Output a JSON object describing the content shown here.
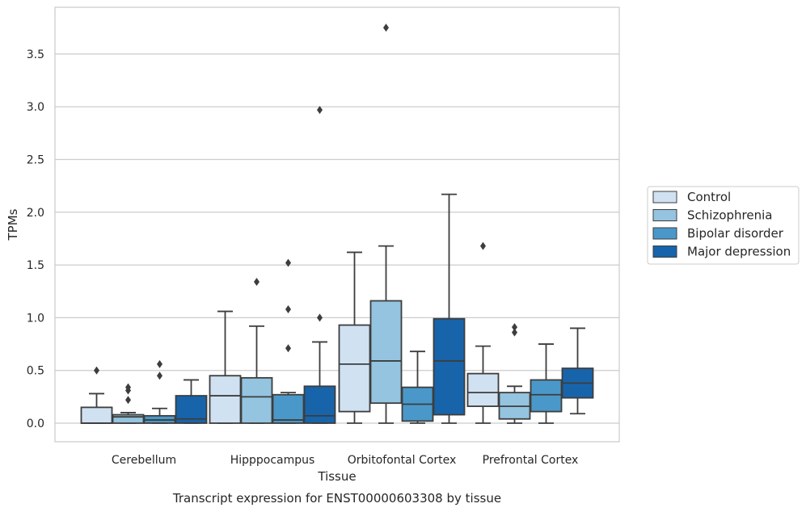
{
  "chart_data": {
    "type": "box",
    "title": "",
    "caption": "Transcript expression for ENST00000603308 by tissue",
    "xlabel": "Tissue",
    "ylabel": "TPMs",
    "ylim": [
      -0.18,
      3.9
    ],
    "yticks": [
      "0.0",
      "0.5",
      "1.0",
      "1.5",
      "2.0",
      "2.5",
      "3.0",
      "3.5"
    ],
    "grid": "horizontal",
    "legend_position": "right",
    "categories": [
      "Cerebellum",
      "Hipppocampus",
      "Orbitofontal Cortex",
      "Prefrontal Cortex"
    ],
    "series": [
      {
        "name": "Control",
        "color": "#d0e1f2",
        "boxes": [
          {
            "whislo": 0.0,
            "q1": 0.0,
            "med": 0.0,
            "q3": 0.15,
            "whishi": 0.28,
            "fliers": [
              0.5
            ]
          },
          {
            "whislo": 0.0,
            "q1": 0.0,
            "med": 0.26,
            "q3": 0.45,
            "whishi": 1.06,
            "fliers": []
          },
          {
            "whislo": 0.0,
            "q1": 0.11,
            "med": 0.56,
            "q3": 0.93,
            "whishi": 1.62,
            "fliers": []
          },
          {
            "whislo": 0.0,
            "q1": 0.16,
            "med": 0.29,
            "q3": 0.47,
            "whishi": 0.73,
            "fliers": [
              1.68
            ]
          }
        ]
      },
      {
        "name": "Schizophrenia",
        "color": "#94c4df",
        "boxes": [
          {
            "whislo": 0.0,
            "q1": 0.0,
            "med": 0.06,
            "q3": 0.08,
            "whishi": 0.1,
            "fliers": [
              0.22,
              0.31,
              0.34
            ]
          },
          {
            "whislo": 0.0,
            "q1": 0.0,
            "med": 0.25,
            "q3": 0.43,
            "whishi": 0.92,
            "fliers": [
              1.34
            ]
          },
          {
            "whislo": 0.0,
            "q1": 0.19,
            "med": 0.59,
            "q3": 1.16,
            "whishi": 1.68,
            "fliers": [
              3.75
            ]
          },
          {
            "whislo": 0.0,
            "q1": 0.04,
            "med": 0.16,
            "q3": 0.29,
            "whishi": 0.35,
            "fliers": [
              0.86,
              0.91
            ]
          }
        ]
      },
      {
        "name": "Bipolar disorder",
        "color": "#4a98c9",
        "boxes": [
          {
            "whislo": 0.0,
            "q1": 0.0,
            "med": 0.03,
            "q3": 0.07,
            "whishi": 0.14,
            "fliers": [
              0.45,
              0.56
            ]
          },
          {
            "whislo": 0.0,
            "q1": 0.0,
            "med": 0.03,
            "q3": 0.27,
            "whishi": 0.29,
            "fliers": [
              0.71,
              1.08,
              1.52
            ]
          },
          {
            "whislo": 0.0,
            "q1": 0.02,
            "med": 0.18,
            "q3": 0.34,
            "whishi": 0.68,
            "fliers": []
          },
          {
            "whislo": 0.0,
            "q1": 0.11,
            "med": 0.27,
            "q3": 0.41,
            "whishi": 0.75,
            "fliers": []
          }
        ]
      },
      {
        "name": "Major depression",
        "color": "#1764ab",
        "boxes": [
          {
            "whislo": 0.0,
            "q1": 0.0,
            "med": 0.04,
            "q3": 0.26,
            "whishi": 0.41,
            "fliers": []
          },
          {
            "whislo": 0.0,
            "q1": 0.0,
            "med": 0.07,
            "q3": 0.35,
            "whishi": 0.77,
            "fliers": [
              1.0,
              2.97
            ]
          },
          {
            "whislo": 0.0,
            "q1": 0.08,
            "med": 0.59,
            "q3": 0.99,
            "whishi": 2.17,
            "fliers": []
          },
          {
            "whislo": 0.09,
            "q1": 0.24,
            "med": 0.38,
            "q3": 0.52,
            "whishi": 0.9,
            "fliers": []
          }
        ]
      }
    ]
  }
}
